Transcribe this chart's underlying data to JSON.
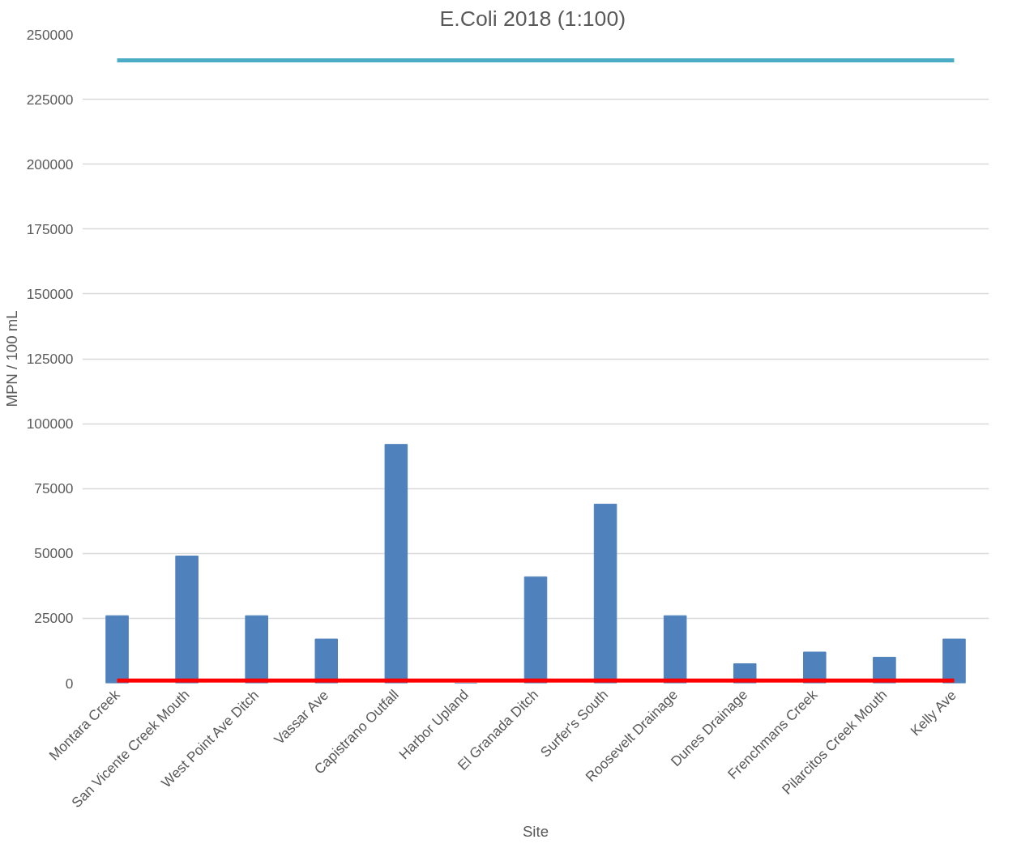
{
  "chart_data": {
    "type": "bar",
    "title": "E.Coli  2018 (1:100)",
    "xlabel": "Site",
    "ylabel": "MPN / 100 mL",
    "categories": [
      "Montara Creek",
      "San Vicente Creek Mouth",
      "West Point Ave Ditch",
      "Vassar Ave",
      "Capistrano Outfall",
      "Harbor Upland",
      "El Granada Ditch",
      "Surfer's South",
      "Roosevelt Drainage",
      "Dunes Drainage",
      "Frenchmans Creek",
      "Pilarcitos Creek Mouth",
      "Kelly Ave"
    ],
    "series": [
      {
        "color": "#4f81bd",
        "values": [
          26000,
          49000,
          26000,
          17000,
          92000,
          0,
          41000,
          69000,
          26000,
          7500,
          12000,
          10000,
          17000
        ]
      },
      {
        "type": "line",
        "color": "#4bacc6",
        "values": [
          240000,
          240000,
          240000,
          240000,
          240000,
          240000,
          240000,
          240000,
          240000,
          240000,
          240000,
          240000,
          240000
        ]
      },
      {
        "type": "line",
        "color": "#ff0000",
        "values": [
          1000,
          1000,
          1000,
          1000,
          1000,
          1000,
          1000,
          1000,
          1000,
          1000,
          1000,
          1000,
          1000
        ]
      }
    ],
    "ylim": [
      0,
      250000
    ],
    "yticks": [
      0,
      25000,
      50000,
      75000,
      100000,
      125000,
      150000,
      175000,
      200000,
      225000,
      250000
    ],
    "grid": "y"
  }
}
